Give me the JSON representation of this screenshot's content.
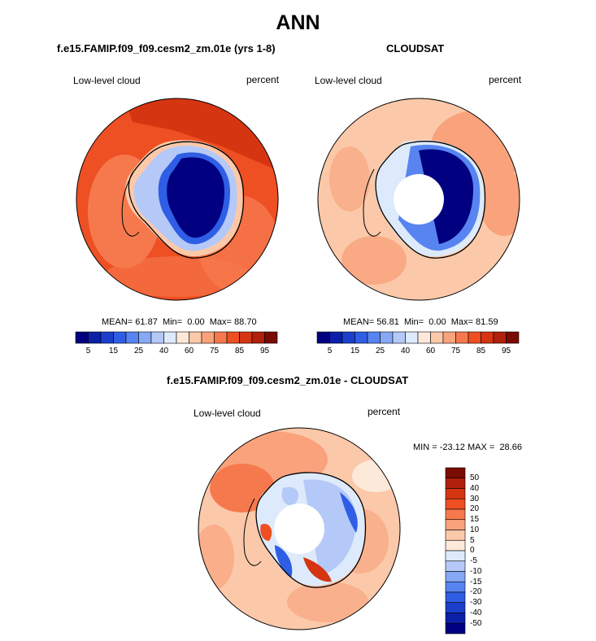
{
  "main_title": "ANN",
  "colors": {
    "levels_abs": [
      "#000080",
      "#0b1fa8",
      "#1b3fcb",
      "#2f5ee5",
      "#5784f0",
      "#87a8f5",
      "#b5c9f8",
      "#ddeafb",
      "#fde9da",
      "#fbc9a9",
      "#f9a27c",
      "#f6794d",
      "#ee4f23",
      "#d63512",
      "#b0200a",
      "#7a0b02"
    ],
    "levels_diff": [
      "#7a0b02",
      "#b0200a",
      "#d63512",
      "#ee4f23",
      "#f6794d",
      "#f9a27c",
      "#fbc9a9",
      "#fde9da",
      "#ddeafb",
      "#b5c9f8",
      "#87a8f5",
      "#5784f0",
      "#2f5ee5",
      "#1b3fcb",
      "#0b1fa8",
      "#000080"
    ]
  },
  "panels": [
    {
      "title": "f.e15.FAMIP.f09_f09.cesm2_zm.01e (yrs 1-8)",
      "variable": "Low-level cloud",
      "units": "percent",
      "mean": "61.87",
      "min": "0.00",
      "max": "88.70",
      "mean_label": "MEAN=",
      "min_label": "Min=",
      "max_label": "Max=",
      "colorbar_ticks": [
        "5",
        "15",
        "25",
        "40",
        "60",
        "75",
        "85",
        "95"
      ]
    },
    {
      "title": "CLOUDSAT",
      "variable": "Low-level cloud",
      "units": "percent",
      "mean": "56.81",
      "min": "0.00",
      "max": "81.59",
      "mean_label": "MEAN=",
      "min_label": "Min=",
      "max_label": "Max=",
      "colorbar_ticks": [
        "5",
        "15",
        "25",
        "40",
        "60",
        "75",
        "85",
        "95"
      ]
    }
  ],
  "diff_panel": {
    "title": "f.e15.FAMIP.f09_f09.cesm2_zm.01e - CLOUDSAT",
    "variable": "Low-level cloud",
    "units": "percent",
    "min_label": "MIN =",
    "min": "-23.12",
    "max_label": "MAX =",
    "max": "28.66",
    "colorbar_ticks": [
      "50",
      "40",
      "30",
      "20",
      "15",
      "10",
      "5",
      "0",
      "-5",
      "-10",
      "-15",
      "-20",
      "-30",
      "-40",
      "-50"
    ]
  }
}
